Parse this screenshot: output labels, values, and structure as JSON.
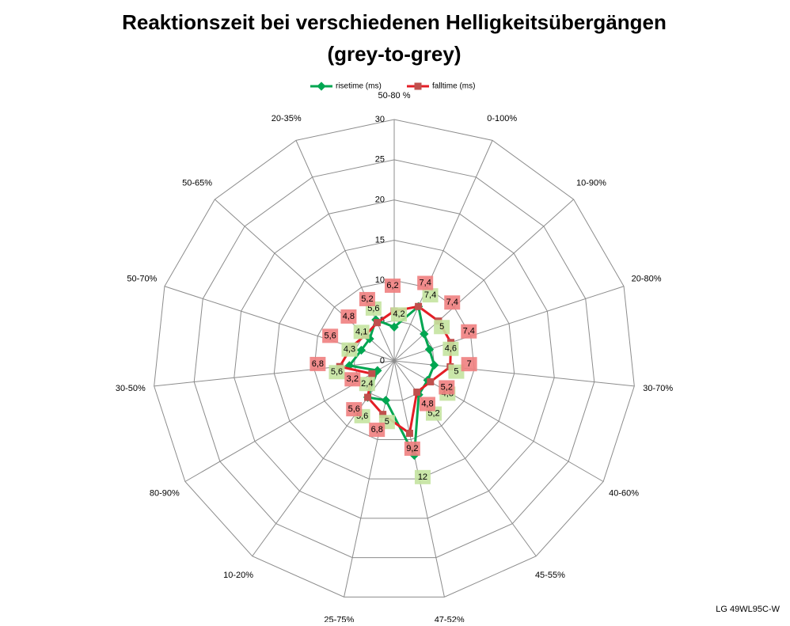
{
  "chart_data": {
    "type": "radar",
    "title": "Reaktionszeit bei verschiedenen Helligkeitsübergängen",
    "subtitle": "(grey-to-grey)",
    "categories": [
      "50-80 %",
      "0-100%",
      "10-90%",
      "20-80%",
      "30-70%",
      "40-60%",
      "45-55%",
      "47-52%",
      "25-75%",
      "10-20%",
      "80-90%",
      "30-50%",
      "50-70%",
      "50-65%",
      "20-35%"
    ],
    "series": [
      {
        "name": "risetime (ms)",
        "color": "#00a651",
        "values": [
          4.2,
          7.4,
          5,
          4.6,
          5,
          4.8,
          5.2,
          12,
          5,
          5.6,
          2.4,
          5.6,
          4.3,
          4.1,
          5.6
        ],
        "value_labels": [
          "4,2",
          "7,4",
          "5",
          "4,6",
          "5",
          "4,8",
          "5,2",
          "12",
          "5",
          "5,6",
          "2,4",
          "5,6",
          "4,3",
          "4,1",
          "5,6"
        ]
      },
      {
        "name": "falltime (ms)",
        "color": "#e41e26",
        "values": [
          6.2,
          7.4,
          7.4,
          7.4,
          7,
          5.2,
          4.8,
          9.2,
          6.8,
          5.6,
          3.2,
          6.8,
          5.6,
          4.8,
          5.2
        ],
        "value_labels": [
          "6,2",
          "7,4",
          "7,4",
          "7,4",
          "7",
          "5,2",
          "4,8",
          "9,2",
          "6,8",
          "5,6",
          "3,2",
          "6,8",
          "5,6",
          "4,8",
          "5,2"
        ]
      }
    ],
    "ylim": [
      0,
      30
    ],
    "yticks": [
      0,
      5,
      10,
      15,
      20,
      25,
      30
    ],
    "grid": true,
    "legend": "top",
    "annotation": "LG 49WL95C-W"
  }
}
